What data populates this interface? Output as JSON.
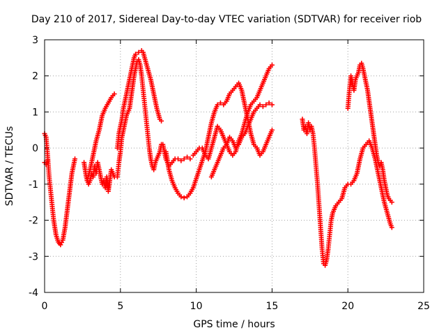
{
  "chart_data": {
    "type": "scatter",
    "title": "Day 210 of 2017, Sidereal Day-to-day VTEC variation (SDTVAR) for receiver riob",
    "xlabel": "GPS time / hours",
    "ylabel": "SDTVAR / TECUs",
    "xlim": [
      0,
      25
    ],
    "ylim": [
      -4,
      3
    ],
    "xticks": [
      0,
      5,
      10,
      15,
      20,
      25
    ],
    "yticks": [
      -4,
      -3,
      -2,
      -1,
      0,
      1,
      2,
      3
    ],
    "grid": true,
    "marker": "+",
    "color": "#ff0000",
    "series": [
      {
        "name": "SDTVAR",
        "segments": [
          [
            [
              0.0,
              0.4
            ],
            [
              0.1,
              0.3
            ],
            [
              0.2,
              -0.2
            ],
            [
              0.3,
              -0.8
            ],
            [
              0.45,
              -1.4
            ],
            [
              0.6,
              -2.0
            ],
            [
              0.75,
              -2.4
            ],
            [
              0.9,
              -2.6
            ],
            [
              1.05,
              -2.68
            ],
            [
              1.2,
              -2.55
            ],
            [
              1.35,
              -2.2
            ],
            [
              1.5,
              -1.7
            ],
            [
              1.65,
              -1.2
            ],
            [
              1.8,
              -0.7
            ],
            [
              2.0,
              -0.3
            ]
          ],
          [
            [
              0.0,
              -0.4
            ],
            [
              0.1,
              -0.45
            ],
            [
              0.2,
              -0.35
            ]
          ],
          [
            [
              2.6,
              -0.4
            ],
            [
              2.75,
              -0.8
            ],
            [
              2.9,
              -1.0
            ],
            [
              3.0,
              -0.9
            ],
            [
              3.1,
              -0.7
            ],
            [
              3.2,
              -0.8
            ],
            [
              3.3,
              -0.5
            ],
            [
              3.4,
              -0.7
            ],
            [
              3.5,
              -0.4
            ],
            [
              3.6,
              -0.6
            ],
            [
              3.7,
              -0.8
            ],
            [
              3.8,
              -1.0
            ],
            [
              3.9,
              -0.9
            ],
            [
              4.0,
              -1.1
            ],
            [
              4.1,
              -0.8
            ],
            [
              4.2,
              -1.2
            ],
            [
              4.3,
              -0.9
            ],
            [
              4.4,
              -0.6
            ],
            [
              4.5,
              -0.7
            ],
            [
              4.6,
              -0.8
            ]
          ],
          [
            [
              2.8,
              -0.9
            ],
            [
              3.0,
              -0.6
            ],
            [
              3.2,
              -0.2
            ],
            [
              3.4,
              0.2
            ],
            [
              3.6,
              0.5
            ],
            [
              3.8,
              0.9
            ],
            [
              4.0,
              1.1
            ],
            [
              4.2,
              1.25
            ],
            [
              4.4,
              1.4
            ],
            [
              4.6,
              1.5
            ]
          ],
          [
            [
              4.8,
              0.0
            ],
            [
              4.9,
              0.4
            ],
            [
              5.0,
              0.6
            ],
            [
              5.1,
              0.8
            ],
            [
              5.2,
              1.1
            ],
            [
              5.3,
              1.3
            ],
            [
              5.4,
              1.5
            ],
            [
              5.5,
              1.7
            ],
            [
              5.6,
              1.9
            ],
            [
              5.7,
              2.1
            ],
            [
              5.8,
              2.3
            ],
            [
              5.9,
              2.5
            ],
            [
              6.0,
              2.6
            ],
            [
              6.2,
              2.65
            ],
            [
              6.4,
              2.7
            ],
            [
              6.5,
              2.65
            ],
            [
              6.6,
              2.5
            ],
            [
              6.7,
              2.35
            ],
            [
              6.8,
              2.2
            ],
            [
              6.9,
              2.05
            ],
            [
              7.0,
              1.9
            ],
            [
              7.1,
              1.7
            ],
            [
              7.2,
              1.5
            ],
            [
              7.3,
              1.3
            ],
            [
              7.4,
              1.1
            ],
            [
              7.5,
              0.95
            ],
            [
              7.6,
              0.8
            ],
            [
              7.7,
              0.75
            ]
          ],
          [
            [
              4.8,
              -0.8
            ],
            [
              4.9,
              -0.4
            ],
            [
              5.0,
              -0.1
            ],
            [
              5.1,
              0.3
            ],
            [
              5.2,
              0.5
            ],
            [
              5.3,
              0.7
            ],
            [
              5.4,
              0.9
            ],
            [
              5.5,
              1.0
            ],
            [
              5.6,
              1.1
            ],
            [
              5.7,
              1.4
            ],
            [
              5.8,
              1.7
            ],
            [
              5.9,
              2.0
            ],
            [
              6.0,
              2.2
            ],
            [
              6.1,
              2.4
            ],
            [
              6.2,
              2.45
            ],
            [
              6.3,
              2.3
            ],
            [
              6.4,
              2.0
            ],
            [
              6.5,
              1.6
            ],
            [
              6.6,
              1.2
            ],
            [
              6.7,
              0.8
            ],
            [
              6.8,
              0.4
            ],
            [
              6.9,
              0.0
            ],
            [
              7.0,
              -0.3
            ],
            [
              7.1,
              -0.5
            ],
            [
              7.2,
              -0.6
            ],
            [
              7.3,
              -0.4
            ],
            [
              7.4,
              -0.3
            ],
            [
              7.5,
              -0.2
            ],
            [
              7.6,
              -0.1
            ],
            [
              7.7,
              0.1
            ],
            [
              7.8,
              0.1
            ],
            [
              8.0,
              -0.3
            ],
            [
              8.2,
              -0.5
            ],
            [
              8.4,
              -0.4
            ],
            [
              8.6,
              -0.3
            ],
            [
              8.8,
              -0.3
            ],
            [
              9.0,
              -0.35
            ],
            [
              9.2,
              -0.3
            ],
            [
              9.4,
              -0.25
            ],
            [
              9.6,
              -0.3
            ]
          ],
          [
            [
              8.0,
              -0.1
            ],
            [
              8.2,
              -0.6
            ],
            [
              8.4,
              -0.9
            ],
            [
              8.6,
              -1.1
            ],
            [
              8.8,
              -1.25
            ],
            [
              9.0,
              -1.35
            ],
            [
              9.2,
              -1.38
            ],
            [
              9.4,
              -1.35
            ],
            [
              9.6,
              -1.25
            ],
            [
              9.8,
              -1.1
            ],
            [
              10.0,
              -0.85
            ],
            [
              10.2,
              -0.6
            ],
            [
              10.4,
              -0.35
            ],
            [
              10.6,
              -0.1
            ],
            [
              10.8,
              0.3
            ],
            [
              11.0,
              0.7
            ],
            [
              11.2,
              1.0
            ],
            [
              11.4,
              1.2
            ],
            [
              11.6,
              1.25
            ],
            [
              11.8,
              1.2
            ],
            [
              12.0,
              1.3
            ],
            [
              12.2,
              1.5
            ],
            [
              12.4,
              1.6
            ],
            [
              12.6,
              1.7
            ],
            [
              12.8,
              1.8
            ],
            [
              13.0,
              1.6
            ],
            [
              13.2,
              1.2
            ],
            [
              13.4,
              0.8
            ],
            [
              13.6,
              0.4
            ],
            [
              13.8,
              0.1
            ],
            [
              14.0,
              0.0
            ],
            [
              14.2,
              -0.2
            ],
            [
              14.4,
              -0.1
            ],
            [
              14.6,
              0.1
            ],
            [
              14.8,
              0.3
            ],
            [
              15.0,
              0.5
            ]
          ],
          [
            [
              9.8,
              -0.2
            ],
            [
              10.0,
              -0.1
            ],
            [
              10.2,
              0.0
            ],
            [
              10.4,
              0.0
            ],
            [
              10.6,
              -0.2
            ],
            [
              10.8,
              -0.3
            ],
            [
              11.0,
              0.0
            ],
            [
              11.2,
              0.3
            ],
            [
              11.4,
              0.6
            ],
            [
              11.6,
              0.5
            ],
            [
              11.8,
              0.3
            ],
            [
              12.0,
              0.1
            ],
            [
              12.2,
              -0.1
            ],
            [
              12.4,
              -0.2
            ],
            [
              12.6,
              -0.1
            ],
            [
              12.8,
              0.2
            ],
            [
              13.0,
              0.4
            ],
            [
              13.2,
              0.7
            ],
            [
              13.4,
              1.0
            ],
            [
              13.6,
              1.2
            ],
            [
              13.8,
              1.3
            ],
            [
              14.0,
              1.4
            ],
            [
              14.2,
              1.6
            ],
            [
              14.4,
              1.8
            ],
            [
              14.6,
              2.0
            ],
            [
              14.8,
              2.2
            ],
            [
              15.0,
              2.3
            ]
          ],
          [
            [
              11.0,
              -0.8
            ],
            [
              11.2,
              -0.6
            ],
            [
              11.4,
              -0.4
            ],
            [
              11.6,
              -0.2
            ],
            [
              11.8,
              0.0
            ],
            [
              12.0,
              0.1
            ],
            [
              12.2,
              0.3
            ],
            [
              12.4,
              0.2
            ],
            [
              12.6,
              0.0
            ],
            [
              12.8,
              0.1
            ],
            [
              13.0,
              0.3
            ],
            [
              13.2,
              0.4
            ],
            [
              13.4,
              0.6
            ],
            [
              13.6,
              0.8
            ],
            [
              13.8,
              1.0
            ],
            [
              14.0,
              1.1
            ],
            [
              14.2,
              1.2
            ],
            [
              14.4,
              1.15
            ],
            [
              14.6,
              1.2
            ],
            [
              14.8,
              1.25
            ],
            [
              15.0,
              1.2
            ]
          ],
          [
            [
              17.0,
              0.8
            ],
            [
              17.1,
              0.5
            ],
            [
              17.2,
              0.6
            ],
            [
              17.3,
              0.4
            ],
            [
              17.4,
              0.7
            ],
            [
              17.5,
              0.5
            ],
            [
              17.6,
              0.6
            ],
            [
              17.7,
              0.4
            ],
            [
              17.8,
              0.0
            ],
            [
              17.9,
              -0.5
            ],
            [
              18.0,
              -1.0
            ],
            [
              18.1,
              -1.6
            ],
            [
              18.2,
              -2.2
            ],
            [
              18.3,
              -2.8
            ],
            [
              18.4,
              -3.2
            ],
            [
              18.5,
              -3.25
            ],
            [
              18.6,
              -3.1
            ],
            [
              18.7,
              -2.8
            ],
            [
              18.8,
              -2.4
            ],
            [
              18.9,
              -2.0
            ],
            [
              19.0,
              -1.8
            ],
            [
              19.2,
              -1.6
            ],
            [
              19.4,
              -1.5
            ],
            [
              19.6,
              -1.4
            ],
            [
              19.8,
              -1.1
            ],
            [
              20.0,
              -1.0
            ],
            [
              20.2,
              -1.0
            ],
            [
              20.4,
              -0.9
            ],
            [
              20.6,
              -0.7
            ],
            [
              20.8,
              -0.3
            ],
            [
              21.0,
              0.0
            ],
            [
              21.2,
              0.1
            ],
            [
              21.4,
              0.2
            ],
            [
              21.6,
              0.0
            ],
            [
              21.8,
              -0.3
            ],
            [
              22.0,
              -0.7
            ],
            [
              22.2,
              -1.1
            ],
            [
              22.4,
              -1.5
            ],
            [
              22.6,
              -1.8
            ],
            [
              22.8,
              -2.1
            ],
            [
              22.9,
              -2.2
            ]
          ],
          [
            [
              20.0,
              1.1
            ],
            [
              20.1,
              1.6
            ],
            [
              20.2,
              2.0
            ],
            [
              20.3,
              1.8
            ],
            [
              20.4,
              1.6
            ],
            [
              20.5,
              1.9
            ],
            [
              20.6,
              2.0
            ],
            [
              20.7,
              2.1
            ],
            [
              20.8,
              2.3
            ],
            [
              20.9,
              2.35
            ],
            [
              21.0,
              2.2
            ],
            [
              21.1,
              2.0
            ],
            [
              21.2,
              1.8
            ],
            [
              21.3,
              1.6
            ],
            [
              21.4,
              1.3
            ],
            [
              21.5,
              1.0
            ],
            [
              21.6,
              0.7
            ],
            [
              21.7,
              0.4
            ],
            [
              21.8,
              0.1
            ],
            [
              21.9,
              -0.2
            ],
            [
              22.0,
              -0.4
            ],
            [
              22.1,
              -0.5
            ],
            [
              22.2,
              -0.4
            ],
            [
              22.3,
              -0.6
            ],
            [
              22.4,
              -0.9
            ],
            [
              22.5,
              -1.1
            ],
            [
              22.6,
              -1.3
            ],
            [
              22.7,
              -1.4
            ],
            [
              22.8,
              -1.45
            ],
            [
              22.9,
              -1.5
            ]
          ]
        ]
      }
    ]
  }
}
